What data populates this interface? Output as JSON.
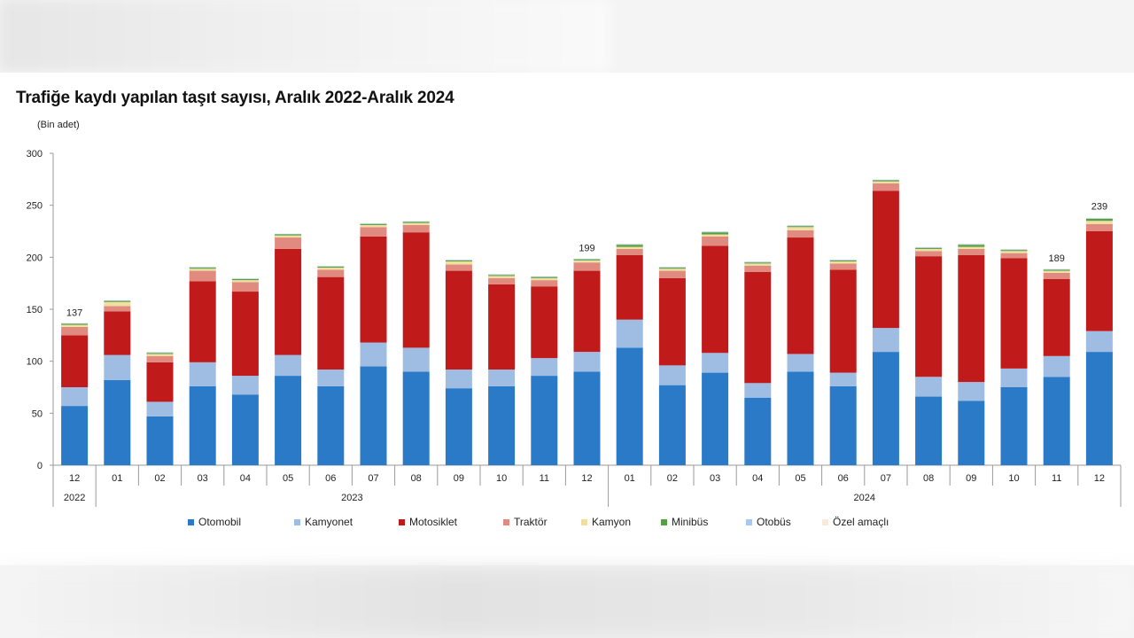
{
  "chart_data": {
    "type": "bar",
    "stacked": true,
    "title": "Trafiğe kaydı yapılan taşıt sayısı, Aralık 2022-Aralık 2024",
    "ylabel": "(Bin adet)",
    "ylim": [
      0,
      300
    ],
    "yticks": [
      "0",
      "50",
      "100",
      "150",
      "200",
      "250",
      "300"
    ],
    "categories": [
      "12",
      "01",
      "02",
      "03",
      "04",
      "05",
      "06",
      "07",
      "08",
      "09",
      "10",
      "11",
      "12",
      "01",
      "02",
      "03",
      "04",
      "05",
      "06",
      "07",
      "08",
      "09",
      "10",
      "11",
      "12"
    ],
    "year_groups": [
      {
        "label": "2022",
        "start": 0,
        "end": 0
      },
      {
        "label": "2023",
        "start": 1,
        "end": 12
      },
      {
        "label": "2024",
        "start": 13,
        "end": 24
      }
    ],
    "series": [
      {
        "name": "Otomobil",
        "color": "#2a7ac7",
        "values": [
          57,
          82,
          47,
          76,
          68,
          86,
          76,
          95,
          90,
          74,
          76,
          86,
          90,
          113,
          77,
          89,
          65,
          90,
          76,
          109,
          66,
          62,
          75,
          85,
          109
        ]
      },
      {
        "name": "Kamyonet",
        "color": "#9fbde3",
        "values": [
          18,
          24,
          14,
          23,
          18,
          20,
          16,
          23,
          23,
          18,
          16,
          17,
          19,
          27,
          19,
          19,
          14,
          17,
          13,
          23,
          19,
          18,
          18,
          20,
          20
        ]
      },
      {
        "name": "Motosiklet",
        "color": "#c01a1a",
        "values": [
          50,
          42,
          38,
          78,
          81,
          102,
          89,
          102,
          111,
          95,
          82,
          69,
          78,
          62,
          84,
          103,
          107,
          112,
          99,
          132,
          116,
          122,
          106,
          74,
          96
        ]
      },
      {
        "name": "Traktör",
        "color": "#e08a80",
        "values": [
          8,
          5,
          6,
          10,
          9,
          11,
          7,
          9,
          7,
          6,
          6,
          6,
          8,
          6,
          7,
          9,
          6,
          7,
          6,
          7,
          5,
          6,
          5,
          6,
          7
        ]
      },
      {
        "name": "Kamyon",
        "color": "#f2dfa0",
        "values": [
          2,
          4,
          2,
          2,
          2,
          2,
          2,
          2,
          2,
          3,
          2,
          2,
          2,
          2,
          2,
          2,
          2,
          3,
          2,
          2,
          2,
          2,
          2,
          2,
          3
        ]
      },
      {
        "name": "Minibüs",
        "color": "#55a043",
        "values": [
          1,
          1,
          1,
          1,
          1,
          1,
          1,
          1,
          1,
          1,
          1,
          1,
          1,
          2,
          1,
          2,
          1,
          1,
          1,
          1,
          1,
          2,
          1,
          1,
          2
        ]
      },
      {
        "name": "Otobüs",
        "color": "#a8c8ec",
        "values": [
          0.6,
          0.6,
          0.6,
          0.6,
          0.6,
          0.6,
          0.6,
          0.6,
          0.6,
          0.6,
          0.6,
          0.6,
          0.6,
          0.6,
          0.6,
          0.6,
          0.6,
          0.6,
          0.6,
          0.6,
          0.6,
          0.6,
          0.6,
          0.6,
          0.6
        ]
      },
      {
        "name": "Özel amaçlı",
        "color": "#f8ecd8",
        "values": [
          0.4,
          0.4,
          0.4,
          0.4,
          0.4,
          0.4,
          0.4,
          0.4,
          0.4,
          0.4,
          0.4,
          0.4,
          0.4,
          0.4,
          0.4,
          0.4,
          0.4,
          0.4,
          0.4,
          0.4,
          0.4,
          0.4,
          0.4,
          0.4,
          0.4
        ]
      }
    ],
    "annotations": [
      {
        "index": 0,
        "label": "137",
        "value": 137
      },
      {
        "index": 12,
        "label": "199",
        "value": 199
      },
      {
        "index": 23,
        "label": "189",
        "value": 189
      },
      {
        "index": 24,
        "label": "239",
        "value": 239
      }
    ]
  }
}
